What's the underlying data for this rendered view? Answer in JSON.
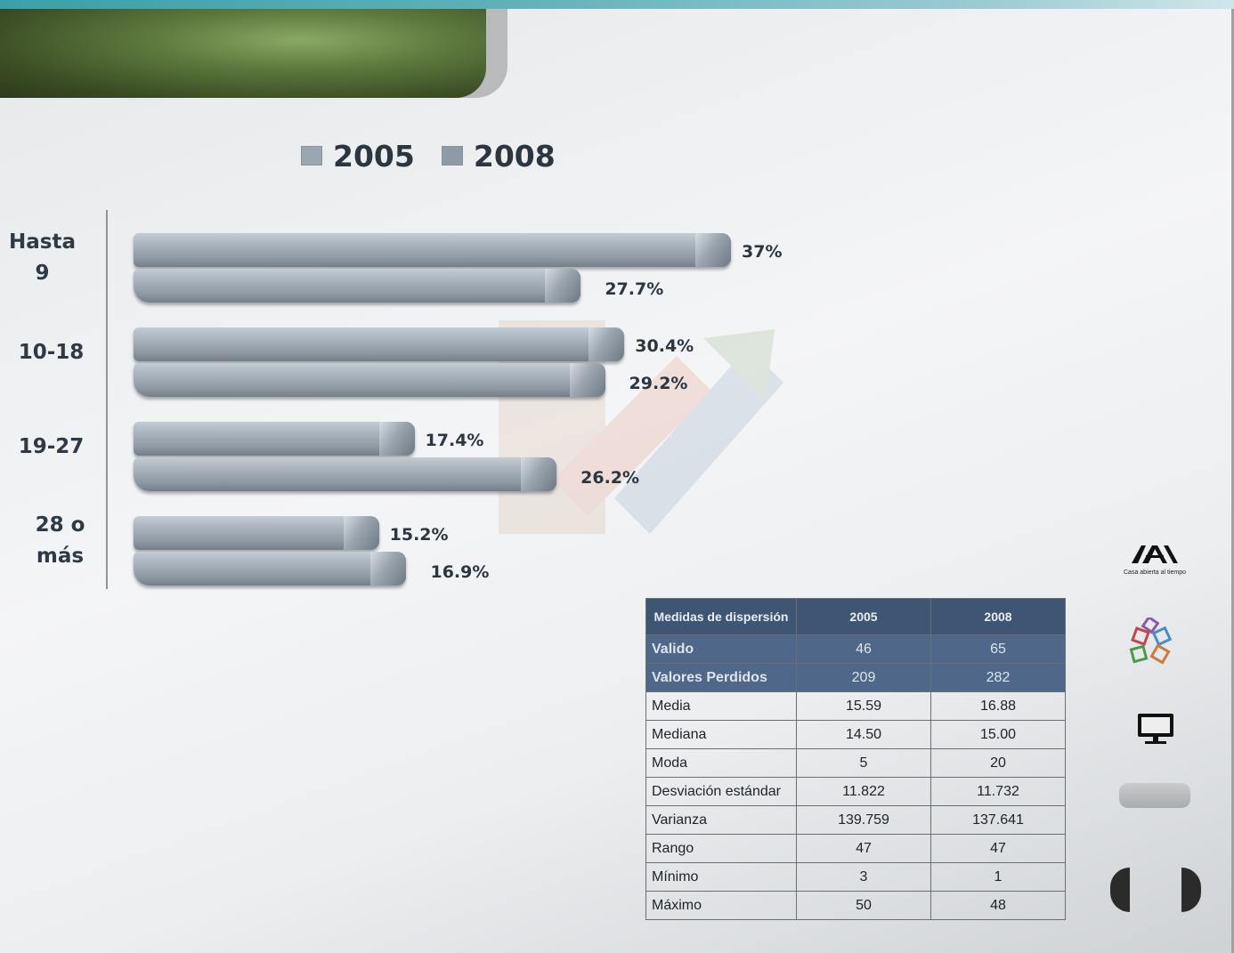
{
  "chart_data": {
    "type": "bar",
    "orientation": "horizontal",
    "categories": [
      "Hasta\n9",
      "10-18",
      "19-27",
      "28 o\nmás"
    ],
    "series": [
      {
        "name": "2005",
        "values": [
          37,
          30.4,
          17.4,
          15.2
        ],
        "labels": [
          "37%",
          "30.4%",
          "17.4%",
          "15.2%"
        ]
      },
      {
        "name": "2008",
        "values": [
          27.7,
          29.2,
          26.2,
          16.9
        ],
        "labels": [
          "27.7%",
          "29.2%",
          "26.2%",
          "16.9%"
        ]
      }
    ],
    "unit": "%",
    "legend_position": "top",
    "xlim": [
      0,
      37
    ]
  },
  "table": {
    "header": [
      "Medidas  de dispersión",
      "2005",
      "2008"
    ],
    "rows": [
      {
        "label": "Valido",
        "v2005": "46",
        "v2008": "65",
        "highlight": true
      },
      {
        "label": "Valores Perdidos",
        "v2005": "209",
        "v2008": "282",
        "highlight": true
      },
      {
        "label": "Media",
        "v2005": "15.59",
        "v2008": "16.88",
        "highlight": false
      },
      {
        "label": "Mediana",
        "v2005": "14.50",
        "v2008": "15.00",
        "highlight": false
      },
      {
        "label": "Moda",
        "v2005": "5",
        "v2008": "20",
        "highlight": false
      },
      {
        "label": "Desviación estándar",
        "v2005": "11.822",
        "v2008": "11.732",
        "highlight": false
      },
      {
        "label": "Varianza",
        "v2005": "139.759",
        "v2008": "137.641",
        "highlight": false
      },
      {
        "label": "Rango",
        "v2005": "47",
        "v2008": "47",
        "highlight": false
      },
      {
        "label": "Mínimo",
        "v2005": "3",
        "v2008": "1",
        "highlight": false
      },
      {
        "label": "Máximo",
        "v2005": "50",
        "v2008": "48",
        "highlight": false
      }
    ]
  },
  "logo": {
    "tagline": "Casa abierta al tiempo"
  },
  "sidebar": {
    "icons": [
      "uam-logo-icon",
      "colored-squares-icon",
      "monitor-icon"
    ],
    "nav": [
      "previous-slide-button",
      "next-slide-button"
    ]
  },
  "colors": {
    "header_bg": "#3f5574",
    "highlight_bg": "#4f6788",
    "bar": "#9aa6b0",
    "title_tab": "#5e7a3e"
  }
}
